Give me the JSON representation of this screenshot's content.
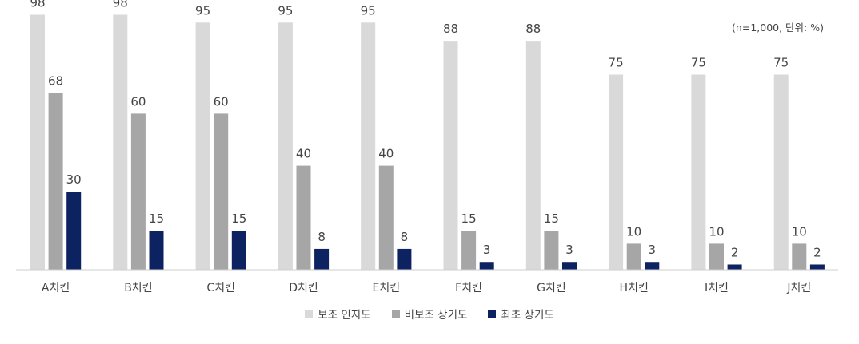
{
  "note": "(n=1,000, 단위: %)",
  "chart_data": {
    "type": "bar",
    "categories": [
      "A치킨",
      "B치킨",
      "C치킨",
      "D치킨",
      "E치킨",
      "F치킨",
      "G치킨",
      "H치킨",
      "I치킨",
      "J치킨"
    ],
    "series": [
      {
        "name": "보조 인지도",
        "color": "#d9d9d9",
        "values": [
          98,
          98,
          95,
          95,
          95,
          88,
          88,
          75,
          75,
          75
        ]
      },
      {
        "name": "비보조 상기도",
        "color": "#a6a6a6",
        "values": [
          68,
          60,
          60,
          40,
          40,
          15,
          15,
          10,
          10,
          10
        ]
      },
      {
        "name": "최초 상기도",
        "color": "#0d2260",
        "values": [
          30,
          15,
          15,
          8,
          8,
          3,
          3,
          3,
          2,
          2
        ]
      }
    ],
    "ylim": [
      0,
      100
    ],
    "grid": false,
    "legend_position": "bottom-center",
    "data_labels": true
  }
}
